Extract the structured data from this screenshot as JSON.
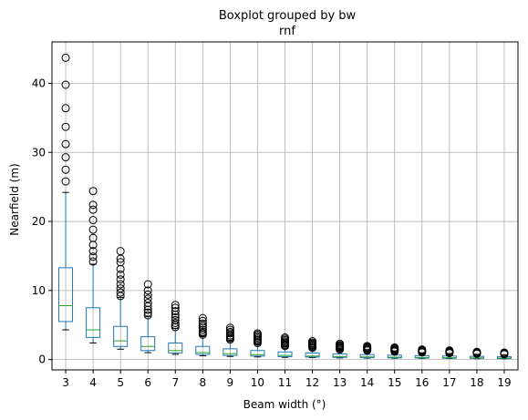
{
  "chart_data": {
    "type": "boxplot",
    "title": "Boxplot grouped by bw",
    "subtitle": "rnf",
    "xlabel": "Beam width (°)",
    "ylabel": "Nearfield (m)",
    "ylim": [
      -1.5,
      46
    ],
    "yticks": [
      0,
      10,
      20,
      30,
      40
    ],
    "grid": true,
    "colors": {
      "box": "#1f77b4",
      "median": "#2ca02c",
      "whisker_cap": "#000000",
      "flier": "#000000",
      "grid": "#b0b0b0",
      "axes": "#000000"
    },
    "categories": [
      "3",
      "4",
      "5",
      "6",
      "7",
      "8",
      "9",
      "10",
      "11",
      "12",
      "13",
      "14",
      "15",
      "16",
      "17",
      "18",
      "19"
    ],
    "boxes": [
      {
        "q1": 5.5,
        "median": 7.8,
        "q3": 13.3,
        "whislo": 4.3,
        "whishi": 24.2,
        "fliers": [
          25.8,
          27.5,
          29.3,
          31.2,
          33.7,
          36.4,
          39.8,
          43.7
        ]
      },
      {
        "q1": 3.2,
        "median": 4.3,
        "q3": 7.5,
        "whislo": 2.4,
        "whishi": 13.8,
        "fliers": [
          14.2,
          14.9,
          15.7,
          16.6,
          17.6,
          18.8,
          20.2,
          21.7,
          22.4,
          24.4
        ]
      },
      {
        "q1": 1.9,
        "median": 2.7,
        "q3": 4.8,
        "whislo": 1.5,
        "whishi": 9.0,
        "fliers": [
          9.2,
          9.7,
          10.3,
          10.9,
          11.6,
          12.3,
          13.1,
          14.1,
          14.6,
          15.7
        ]
      },
      {
        "q1": 1.3,
        "median": 1.9,
        "q3": 3.3,
        "whislo": 1.0,
        "whishi": 6.2,
        "fliers": [
          6.4,
          6.8,
          7.2,
          7.7,
          8.2,
          8.8,
          9.4,
          10.0,
          10.9
        ]
      },
      {
        "q1": 0.95,
        "median": 1.3,
        "q3": 2.4,
        "whislo": 0.75,
        "whishi": 4.5,
        "fliers": [
          4.7,
          5.0,
          5.3,
          5.7,
          6.1,
          6.5,
          7.0,
          7.5,
          7.9
        ]
      },
      {
        "q1": 0.75,
        "median": 1.0,
        "q3": 1.9,
        "whislo": 0.55,
        "whishi": 3.4,
        "fliers": [
          3.6,
          3.8,
          4.0,
          4.3,
          4.6,
          4.9,
          5.2,
          5.6,
          6.0
        ]
      },
      {
        "q1": 0.6,
        "median": 0.85,
        "q3": 1.55,
        "whislo": 0.45,
        "whishi": 2.7,
        "fliers": [
          2.9,
          3.1,
          3.3,
          3.5,
          3.8,
          4.0,
          4.3,
          4.6
        ]
      },
      {
        "q1": 0.5,
        "median": 0.7,
        "q3": 1.3,
        "whislo": 0.38,
        "whishi": 2.2,
        "fliers": [
          2.4,
          2.6,
          2.8,
          3.0,
          3.2,
          3.4,
          3.6,
          3.8
        ]
      },
      {
        "q1": 0.42,
        "median": 0.6,
        "q3": 1.1,
        "whislo": 0.32,
        "whishi": 1.8,
        "fliers": [
          1.95,
          2.1,
          2.3,
          2.45,
          2.6,
          2.8,
          3.0,
          3.2
        ]
      },
      {
        "q1": 0.36,
        "median": 0.5,
        "q3": 0.95,
        "whislo": 0.28,
        "whishi": 1.55,
        "fliers": [
          1.7,
          1.85,
          2.0,
          2.15,
          2.3,
          2.45,
          2.65
        ]
      },
      {
        "q1": 0.31,
        "median": 0.44,
        "q3": 0.82,
        "whislo": 0.24,
        "whishi": 1.35,
        "fliers": [
          1.45,
          1.6,
          1.72,
          1.85,
          1.98,
          2.12,
          2.3
        ]
      },
      {
        "q1": 0.27,
        "median": 0.38,
        "q3": 0.72,
        "whislo": 0.21,
        "whishi": 1.2,
        "fliers": [
          1.3,
          1.42,
          1.55,
          1.68,
          1.82,
          1.95
        ]
      },
      {
        "q1": 0.24,
        "median": 0.34,
        "q3": 0.64,
        "whislo": 0.19,
        "whishi": 1.05,
        "fliers": [
          1.15,
          1.27,
          1.38,
          1.5,
          1.62,
          1.75
        ]
      },
      {
        "q1": 0.21,
        "median": 0.3,
        "q3": 0.57,
        "whislo": 0.17,
        "whishi": 0.95,
        "fliers": [
          1.03,
          1.13,
          1.23,
          1.33,
          1.45
        ]
      },
      {
        "q1": 0.19,
        "median": 0.27,
        "q3": 0.51,
        "whislo": 0.15,
        "whishi": 0.85,
        "fliers": [
          0.93,
          1.02,
          1.12,
          1.22,
          1.32
        ]
      },
      {
        "q1": 0.17,
        "median": 0.24,
        "q3": 0.46,
        "whislo": 0.13,
        "whishi": 0.76,
        "fliers": [
          0.84,
          0.93,
          1.02,
          1.12
        ]
      },
      {
        "q1": 0.15,
        "median": 0.22,
        "q3": 0.42,
        "whislo": 0.12,
        "whishi": 0.69,
        "fliers": [
          0.76,
          0.84,
          0.92,
          1.01
        ]
      }
    ]
  }
}
